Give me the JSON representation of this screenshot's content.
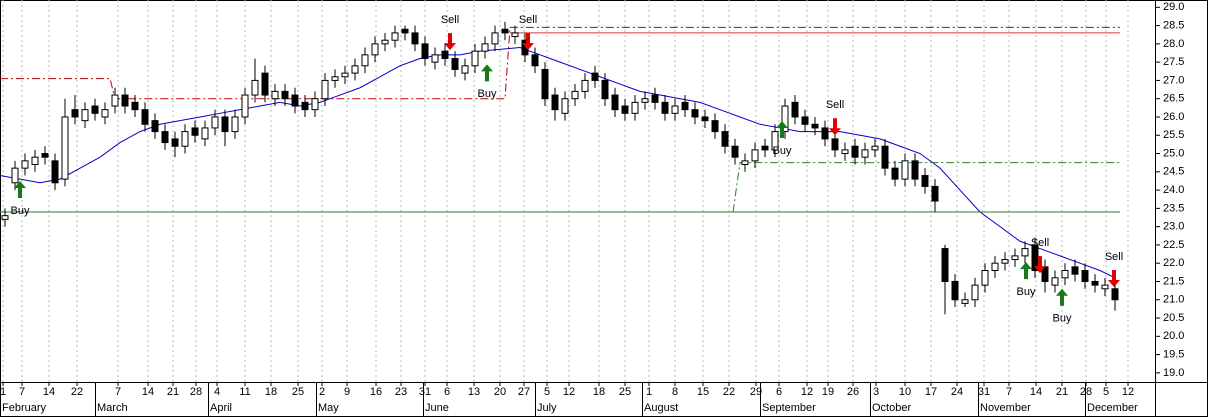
{
  "chart_data": {
    "type": "candlestick",
    "open": [
      23.2,
      24.2,
      24.6,
      24.7,
      25.0,
      24.8,
      24.3,
      26.2,
      25.9,
      26.3,
      26.0,
      26.3,
      26.6,
      26.4,
      26.2,
      25.9,
      25.6,
      25.4,
      25.2,
      25.7,
      25.4,
      25.7,
      26.0,
      25.6,
      26.0,
      26.6,
      27.2,
      26.5,
      26.7,
      26.6,
      26.4,
      26.2,
      26.5,
      27.0,
      27.1,
      27.2,
      27.4,
      27.7,
      28.0,
      28.1,
      28.4,
      28.3,
      28.0,
      27.5,
      27.8,
      27.6,
      27.2,
      27.4,
      27.8,
      28.0,
      28.4,
      28.2,
      28.1,
      27.7,
      27.3,
      26.6,
      26.1,
      26.5,
      26.7,
      27.2,
      27.0,
      26.6,
      26.3,
      26.1,
      26.4,
      26.6,
      26.4,
      26.1,
      26.4,
      26.2,
      26.0,
      25.9,
      25.6,
      25.2,
      24.7,
      24.8,
      25.2,
      25.1,
      25.6,
      26.4,
      26.0,
      25.8,
      25.7,
      25.4,
      25.0,
      25.2,
      24.9,
      25.1,
      25.2,
      24.6,
      24.3,
      24.8,
      24.4,
      24.1,
      22.4,
      21.5,
      20.9,
      21.0,
      21.4,
      21.8,
      22.0,
      22.1,
      22.2,
      22.5,
      21.9,
      21.4,
      21.6,
      21.9,
      21.8,
      21.5,
      21.3,
      21.3
    ],
    "high": [
      23.5,
      24.8,
      25.0,
      25.1,
      25.2,
      25.0,
      26.5,
      26.6,
      26.4,
      26.5,
      26.4,
      26.8,
      26.8,
      26.6,
      26.4,
      26.1,
      25.8,
      25.6,
      25.8,
      25.9,
      25.9,
      26.2,
      26.2,
      26.2,
      26.8,
      27.6,
      27.4,
      26.9,
      26.9,
      26.8,
      26.6,
      26.7,
      27.2,
      27.3,
      27.4,
      27.6,
      27.9,
      28.2,
      28.3,
      28.5,
      28.5,
      28.5,
      28.2,
      27.9,
      28.0,
      27.8,
      27.6,
      28.0,
      28.2,
      28.5,
      28.6,
      28.5,
      28.3,
      27.9,
      27.5,
      26.8,
      26.7,
      26.9,
      27.2,
      27.4,
      27.2,
      26.8,
      26.5,
      26.6,
      26.7,
      26.8,
      26.6,
      26.5,
      26.6,
      26.4,
      26.2,
      26.1,
      25.8,
      25.4,
      25.0,
      25.3,
      25.4,
      25.8,
      26.5,
      26.6,
      26.2,
      26.0,
      25.9,
      25.6,
      25.3,
      25.4,
      25.3,
      25.4,
      25.4,
      24.8,
      25.0,
      25.0,
      24.6,
      24.3,
      22.5,
      21.7,
      21.2,
      21.6,
      22.0,
      22.2,
      22.3,
      22.4,
      22.6,
      22.7,
      22.1,
      21.8,
      22.0,
      22.1,
      22.0,
      21.7,
      21.6,
      21.4
    ],
    "low": [
      23.0,
      24.0,
      24.4,
      24.5,
      24.7,
      24.0,
      24.1,
      25.8,
      25.7,
      25.9,
      25.8,
      26.1,
      26.1,
      26.0,
      25.6,
      25.4,
      25.1,
      24.9,
      25.0,
      25.3,
      25.2,
      25.5,
      25.2,
      25.4,
      25.8,
      26.4,
      26.4,
      26.3,
      26.3,
      26.1,
      26.0,
      26.0,
      26.3,
      26.8,
      26.9,
      27.0,
      27.2,
      27.5,
      27.8,
      27.9,
      28.1,
      27.8,
      27.4,
      27.3,
      27.4,
      27.1,
      27.0,
      27.2,
      27.6,
      27.8,
      28.1,
      28.0,
      27.5,
      27.2,
      26.3,
      25.9,
      25.9,
      26.3,
      26.5,
      26.8,
      26.3,
      26.0,
      25.9,
      25.9,
      26.2,
      26.2,
      25.9,
      25.9,
      26.0,
      25.8,
      25.7,
      25.4,
      25.0,
      24.7,
      24.5,
      24.6,
      24.9,
      24.9,
      25.4,
      25.8,
      25.6,
      25.5,
      25.2,
      24.9,
      24.8,
      24.7,
      24.7,
      24.9,
      24.4,
      24.1,
      24.1,
      24.1,
      23.9,
      23.4,
      20.6,
      20.8,
      20.8,
      20.8,
      21.2,
      21.6,
      21.8,
      21.9,
      22.0,
      21.6,
      21.2,
      21.2,
      21.4,
      21.5,
      21.3,
      21.2,
      21.1,
      20.7
    ],
    "close": [
      23.3,
      24.6,
      24.8,
      24.9,
      24.9,
      24.2,
      26.0,
      26.0,
      26.2,
      26.1,
      26.2,
      26.6,
      26.3,
      26.2,
      25.8,
      25.6,
      25.3,
      25.2,
      25.6,
      25.5,
      25.7,
      26.0,
      25.6,
      26.0,
      26.6,
      27.0,
      26.6,
      26.7,
      26.5,
      26.3,
      26.2,
      26.5,
      27.0,
      27.1,
      27.2,
      27.4,
      27.7,
      28.0,
      28.1,
      28.3,
      28.3,
      28.0,
      27.6,
      27.7,
      27.6,
      27.3,
      27.4,
      27.8,
      28.0,
      28.3,
      28.3,
      28.3,
      27.7,
      27.4,
      26.5,
      26.2,
      26.5,
      26.7,
      27.0,
      27.0,
      26.5,
      26.2,
      26.1,
      26.4,
      26.5,
      26.4,
      26.1,
      26.3,
      26.2,
      26.0,
      25.9,
      25.6,
      25.2,
      24.9,
      24.8,
      25.1,
      25.1,
      25.6,
      26.3,
      26.0,
      25.8,
      25.7,
      25.4,
      25.1,
      25.1,
      24.9,
      25.1,
      25.2,
      24.6,
      24.3,
      24.8,
      24.3,
      24.1,
      23.7,
      21.5,
      21.0,
      21.0,
      21.4,
      21.8,
      22.0,
      22.1,
      22.2,
      22.4,
      21.8,
      21.5,
      21.6,
      21.8,
      21.7,
      21.5,
      21.4,
      21.4,
      21.0
    ],
    "up_color": "#ffffff",
    "down_color": "#000000",
    "lines": [
      {
        "style": "solid",
        "color": "#0000cc",
        "x": [
          0,
          4,
          6,
          8,
          10,
          12,
          14,
          16,
          18,
          20,
          22,
          24,
          26,
          28,
          30,
          32,
          34,
          36,
          38,
          40,
          42,
          44,
          46,
          48,
          50,
          52,
          54,
          56,
          58,
          60,
          62,
          64,
          66,
          68,
          70,
          72,
          74,
          76,
          78,
          80,
          82,
          84,
          86,
          88,
          90,
          92,
          94,
          96,
          98,
          100,
          102,
          104,
          106,
          108,
          110,
          111.5
        ],
        "values": [
          24.4,
          24.2,
          24.3,
          24.6,
          24.9,
          25.3,
          25.6,
          25.8,
          25.9,
          26.0,
          26.1,
          26.2,
          26.3,
          26.4,
          26.3,
          26.4,
          26.6,
          26.8,
          27.1,
          27.4,
          27.6,
          27.7,
          27.7,
          27.8,
          27.85,
          27.9,
          27.7,
          27.5,
          27.3,
          27.1,
          26.9,
          26.7,
          26.6,
          26.5,
          26.4,
          26.2,
          26.0,
          25.8,
          25.7,
          25.6,
          25.6,
          25.6,
          25.5,
          25.4,
          25.2,
          25.0,
          24.6,
          24.0,
          23.4,
          23.0,
          22.6,
          22.4,
          22.2,
          22.0,
          21.8,
          21.6
        ]
      },
      {
        "style": "dashdot",
        "color": "#c00000",
        "x": [
          0,
          11,
          11.5,
          50.5,
          51,
          112
        ],
        "values": [
          27.05,
          27.05,
          26.5,
          26.5,
          28.45,
          28.45
        ]
      },
      {
        "style": "solid",
        "color": "#e03030",
        "x": [
          51,
          112
        ],
        "values": [
          28.3,
          28.3
        ]
      },
      {
        "style": "solid",
        "color": "#2e7d2e",
        "x": [
          0,
          112
        ],
        "values": [
          23.4,
          23.4
        ]
      },
      {
        "style": "dashdot",
        "color": "#2e7d2e",
        "x": [
          73.3,
          74,
          112
        ],
        "values": [
          23.4,
          24.75,
          24.75
        ]
      }
    ],
    "signals": [
      {
        "label": "Buy",
        "direction": "up",
        "color": "#1a7a1a",
        "x": 2.0,
        "value": 24.25
      },
      {
        "label": "Sell",
        "direction": "down",
        "color": "#e00000",
        "x": 45.0,
        "value": 27.83
      },
      {
        "label": "Buy",
        "direction": "up",
        "color": "#1a7a1a",
        "x": 48.7,
        "value": 27.44
      },
      {
        "label": "Sell",
        "direction": "down",
        "color": "#e00000",
        "x": 52.8,
        "value": 27.83
      },
      {
        "label": "Buy",
        "direction": "up",
        "color": "#1a7a1a",
        "x": 78.2,
        "value": 25.89
      },
      {
        "label": "Sell",
        "direction": "down",
        "color": "#e00000",
        "x": 83.5,
        "value": 25.5
      },
      {
        "label": "Buy",
        "direction": "up",
        "color": "#1a7a1a",
        "x": 102.6,
        "value": 22.03
      },
      {
        "label": "Sell",
        "direction": "down",
        "color": "#e00000",
        "x": 104.0,
        "value": 21.73
      },
      {
        "label": "Buy",
        "direction": "up",
        "color": "#1a7a1a",
        "x": 106.2,
        "value": 21.3
      },
      {
        "label": "Sell",
        "direction": "down",
        "color": "#e00000",
        "x": 111.4,
        "value": 21.35
      }
    ],
    "xlim": [
      0,
      115.5
    ],
    "ylim": [
      18.75,
      29.2
    ],
    "yticks": [
      {
        "value": 19,
        "label": "19.0"
      },
      {
        "value": 19.5,
        "label": "19.5"
      },
      {
        "value": 20,
        "label": "20.0"
      },
      {
        "value": 20.5,
        "label": "20.5"
      },
      {
        "value": 21,
        "label": "21.0"
      },
      {
        "value": 21.5,
        "label": "21.5"
      },
      {
        "value": 22,
        "label": "22.0"
      },
      {
        "value": 22.5,
        "label": "22.5"
      },
      {
        "value": 23,
        "label": "23.0"
      },
      {
        "value": 23.5,
        "label": "23.5"
      },
      {
        "value": 24,
        "label": "24.0"
      },
      {
        "value": 24.5,
        "label": "24.5"
      },
      {
        "value": 25,
        "label": "25.0"
      },
      {
        "value": 25.5,
        "label": "25.5"
      },
      {
        "value": 26,
        "label": "26.0"
      },
      {
        "value": 26.5,
        "label": "26.5"
      },
      {
        "value": 27,
        "label": "27.0"
      },
      {
        "value": 27.5,
        "label": "27.5"
      },
      {
        "value": 28,
        "label": "28.0"
      },
      {
        "value": 28.5,
        "label": "28.5"
      },
      {
        "value": 29,
        "label": "29.0"
      }
    ],
    "xticks": [
      {
        "value": 0.3,
        "label": "1"
      },
      {
        "value": 2.2,
        "label": "7"
      },
      {
        "value": 4.9,
        "label": "14"
      },
      {
        "value": 7.7,
        "label": "22"
      },
      {
        "value": 11.8,
        "label": "7"
      },
      {
        "value": 14.8,
        "label": "14"
      },
      {
        "value": 17.3,
        "label": "21"
      },
      {
        "value": 19.6,
        "label": "28"
      },
      {
        "value": 21.7,
        "label": "4"
      },
      {
        "value": 24.5,
        "label": "11"
      },
      {
        "value": 27.1,
        "label": "18"
      },
      {
        "value": 29.8,
        "label": "25"
      },
      {
        "value": 32.2,
        "label": "2"
      },
      {
        "value": 34.7,
        "label": "9"
      },
      {
        "value": 37.6,
        "label": "16"
      },
      {
        "value": 40.1,
        "label": "23"
      },
      {
        "value": 42.5,
        "label": "31"
      },
      {
        "value": 44.7,
        "label": "6"
      },
      {
        "value": 47.4,
        "label": "13"
      },
      {
        "value": 50.0,
        "label": "20"
      },
      {
        "value": 52.4,
        "label": "27"
      },
      {
        "value": 54.7,
        "label": "5"
      },
      {
        "value": 56.9,
        "label": "12"
      },
      {
        "value": 59.9,
        "label": "18"
      },
      {
        "value": 62.5,
        "label": "25"
      },
      {
        "value": 64.9,
        "label": "1"
      },
      {
        "value": 67.5,
        "label": "8"
      },
      {
        "value": 70.3,
        "label": "15"
      },
      {
        "value": 72.9,
        "label": "22"
      },
      {
        "value": 75.6,
        "label": "29"
      },
      {
        "value": 77.9,
        "label": "6"
      },
      {
        "value": 80.7,
        "label": "12"
      },
      {
        "value": 82.8,
        "label": "19"
      },
      {
        "value": 85.3,
        "label": "26"
      },
      {
        "value": 87.6,
        "label": "3"
      },
      {
        "value": 90.5,
        "label": "10"
      },
      {
        "value": 93.1,
        "label": "17"
      },
      {
        "value": 95.7,
        "label": "24"
      },
      {
        "value": 98.4,
        "label": "31"
      },
      {
        "value": 100.9,
        "label": "7"
      },
      {
        "value": 103.6,
        "label": "14"
      },
      {
        "value": 106.2,
        "label": "21"
      },
      {
        "value": 108.6,
        "label": "28"
      },
      {
        "value": 110.6,
        "label": "5"
      },
      {
        "value": 112.8,
        "label": "12"
      }
    ],
    "months": [
      {
        "value": 0,
        "label": "February"
      },
      {
        "value": 9.5,
        "label": "March"
      },
      {
        "value": 20.8,
        "label": "April"
      },
      {
        "value": 31.6,
        "label": "May"
      },
      {
        "value": 42.3,
        "label": "June"
      },
      {
        "value": 53.5,
        "label": "July"
      },
      {
        "value": 64.2,
        "label": "August"
      },
      {
        "value": 76.0,
        "label": "September"
      },
      {
        "value": 87.0,
        "label": "October"
      },
      {
        "value": 97.8,
        "label": "November"
      },
      {
        "value": 108.5,
        "label": "December"
      }
    ],
    "grid": true
  }
}
